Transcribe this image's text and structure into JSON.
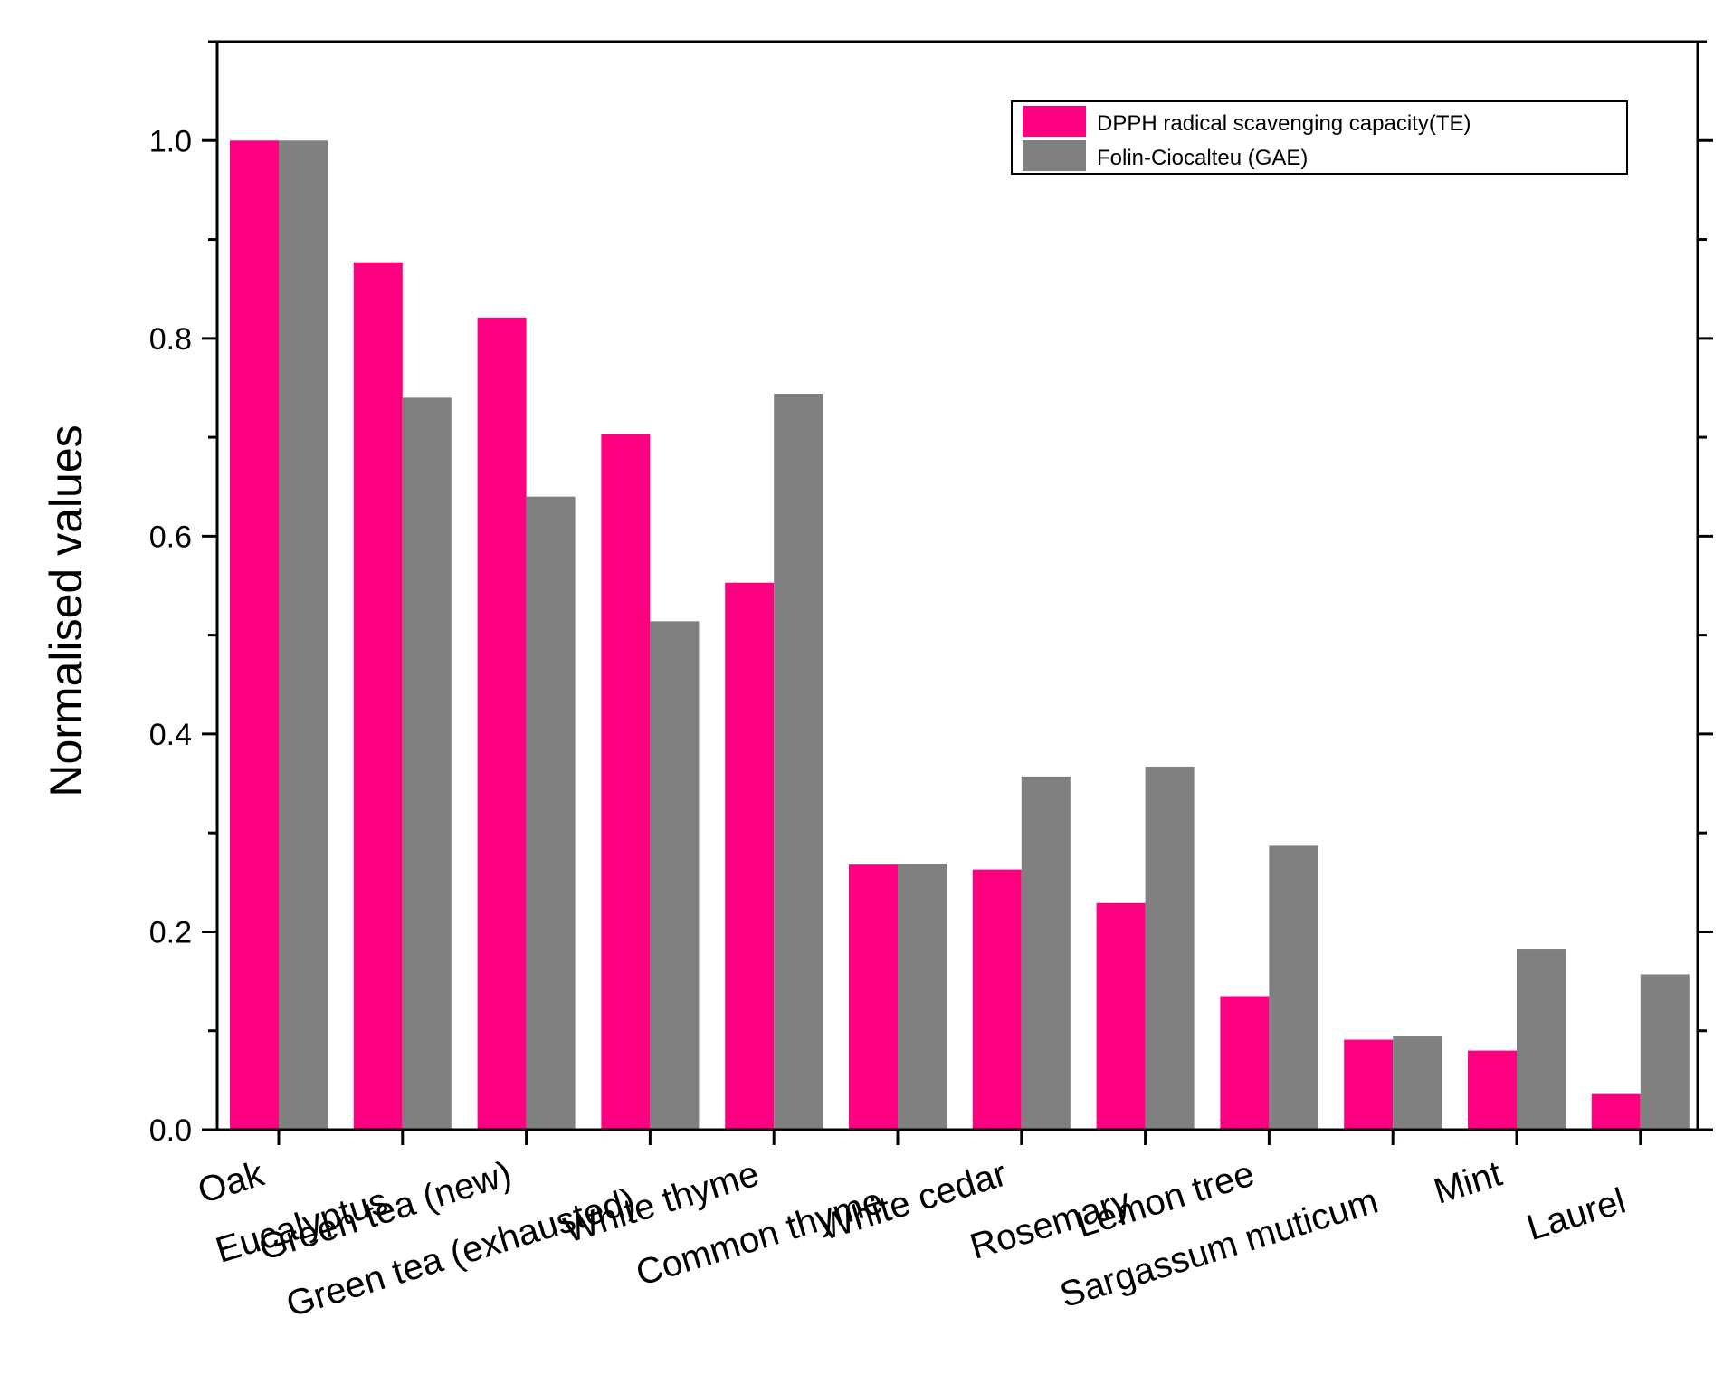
{
  "chart_data": {
    "type": "bar",
    "title": "",
    "xlabel": "",
    "ylabel": "Normalised values",
    "ylim": [
      0,
      1.1
    ],
    "yticks": [
      0.0,
      0.2,
      0.4,
      0.6,
      0.8,
      1.0
    ],
    "ytick_labels": [
      "0.0",
      "0.2",
      "0.4",
      "0.6",
      "0.8",
      "1.0"
    ],
    "grid": false,
    "legend_position": "top-right",
    "categories": [
      "Oak",
      "Eucalyptus",
      "Green tea (new)",
      "Green tea (exhausted)",
      "White thyme",
      "Common thyme",
      "White cedar",
      "Rosemary",
      "Lemon tree",
      "Sargassum muticum",
      "Mint",
      "Laurel"
    ],
    "series": [
      {
        "name": "DPPH radical scavenging capacity(TE)",
        "color": "#ff0080",
        "values": [
          1.0,
          0.877,
          0.821,
          0.703,
          0.553,
          0.268,
          0.263,
          0.229,
          0.135,
          0.091,
          0.08,
          0.036
        ]
      },
      {
        "name": "Folin-Ciocalteu (GAE)",
        "color": "#808080",
        "values": [
          1.0,
          0.74,
          0.64,
          0.514,
          0.744,
          0.269,
          0.357,
          0.367,
          0.287,
          0.095,
          0.183,
          0.157
        ]
      }
    ]
  }
}
